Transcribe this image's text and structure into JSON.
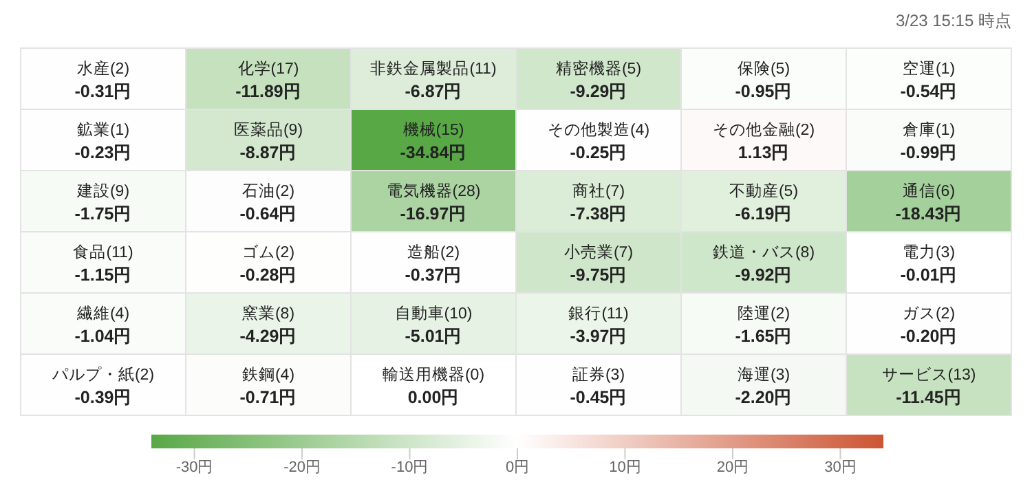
{
  "chart_data": {
    "type": "heatmap",
    "annotations": [
      "3/23 15:15 時点"
    ],
    "categories": [
      null,
      null,
      null,
      null,
      null,
      null
    ],
    "y_categories": [
      null,
      null,
      null,
      null,
      null,
      null
    ],
    "cells": [
      [
        -0.31,
        -11.89,
        -6.87,
        -9.29,
        -0.95,
        -0.54
      ],
      [
        -0.23,
        -8.87,
        -34.84,
        -0.25,
        1.13,
        -0.99
      ],
      [
        -1.75,
        -0.64,
        -16.97,
        -7.38,
        -6.19,
        -18.43
      ],
      [
        -1.15,
        -0.28,
        -0.37,
        -9.75,
        -9.92,
        -0.01
      ],
      [
        -1.04,
        -4.29,
        -5.01,
        -3.97,
        -1.65,
        -0.2
      ],
      [
        -0.39,
        -0.71,
        0.0,
        -0.45,
        -2.2,
        -11.45
      ]
    ],
    "cell_labels": [
      [
        "水産(2)\n-0.31円",
        "化学(17)\n-11.89円",
        "非鉄金属製品(11)\n-6.87円",
        "精密機器(5)\n-9.29円",
        "保険(5)\n-0.95円",
        "空運(1)\n-0.54円"
      ],
      [
        "鉱業(1)\n-0.23円",
        "医薬品(9)\n-8.87円",
        "機械(15)\n-34.84円",
        "その他製造(4)\n-0.25円",
        "その他金融(2)\n1.13円",
        "倉庫(1)\n-0.99円"
      ],
      [
        "建設(9)\n-1.75円",
        "石油(2)\n-0.64円",
        "電気機器(28)\n-16.97円",
        "商社(7)\n-7.38円",
        "不動産(5)\n-6.19円",
        "通信(6)\n-18.43円"
      ],
      [
        "食品(11)\n-1.15円",
        "ゴム(2)\n-0.28円",
        "造船(2)\n-0.37円",
        "小売業(7)\n-9.75円",
        "鉄道・バス(8)\n-9.92円",
        "電力(3)\n-0.01円"
      ],
      [
        "繊維(4)\n-1.04円",
        "窯業(8)\n-4.29円",
        "自動車(10)\n-5.01円",
        "銀行(11)\n-3.97円",
        "陸運(2)\n-1.65円",
        "ガス(2)\n-0.20円"
      ],
      [
        "パルプ・紙(2)\n-0.39円",
        "鉄鋼(4)\n-0.71円",
        "輸送用機器(0)\n0.00円",
        "証券(3)\n-0.45円",
        "海運(3)\n-2.20円",
        "サービス(13)\n-11.45円"
      ]
    ],
    "clim": [
      -34,
      34
    ],
    "cticks": [
      {
        "value": -30,
        "label": "-30円"
      },
      {
        "value": -20,
        "label": "-20円"
      },
      {
        "value": -10,
        "label": "-10円"
      },
      {
        "value": 0,
        "label": "0円"
      },
      {
        "value": 10,
        "label": "10円"
      },
      {
        "value": 20,
        "label": "20円"
      },
      {
        "value": 30,
        "label": "30円"
      }
    ]
  }
}
